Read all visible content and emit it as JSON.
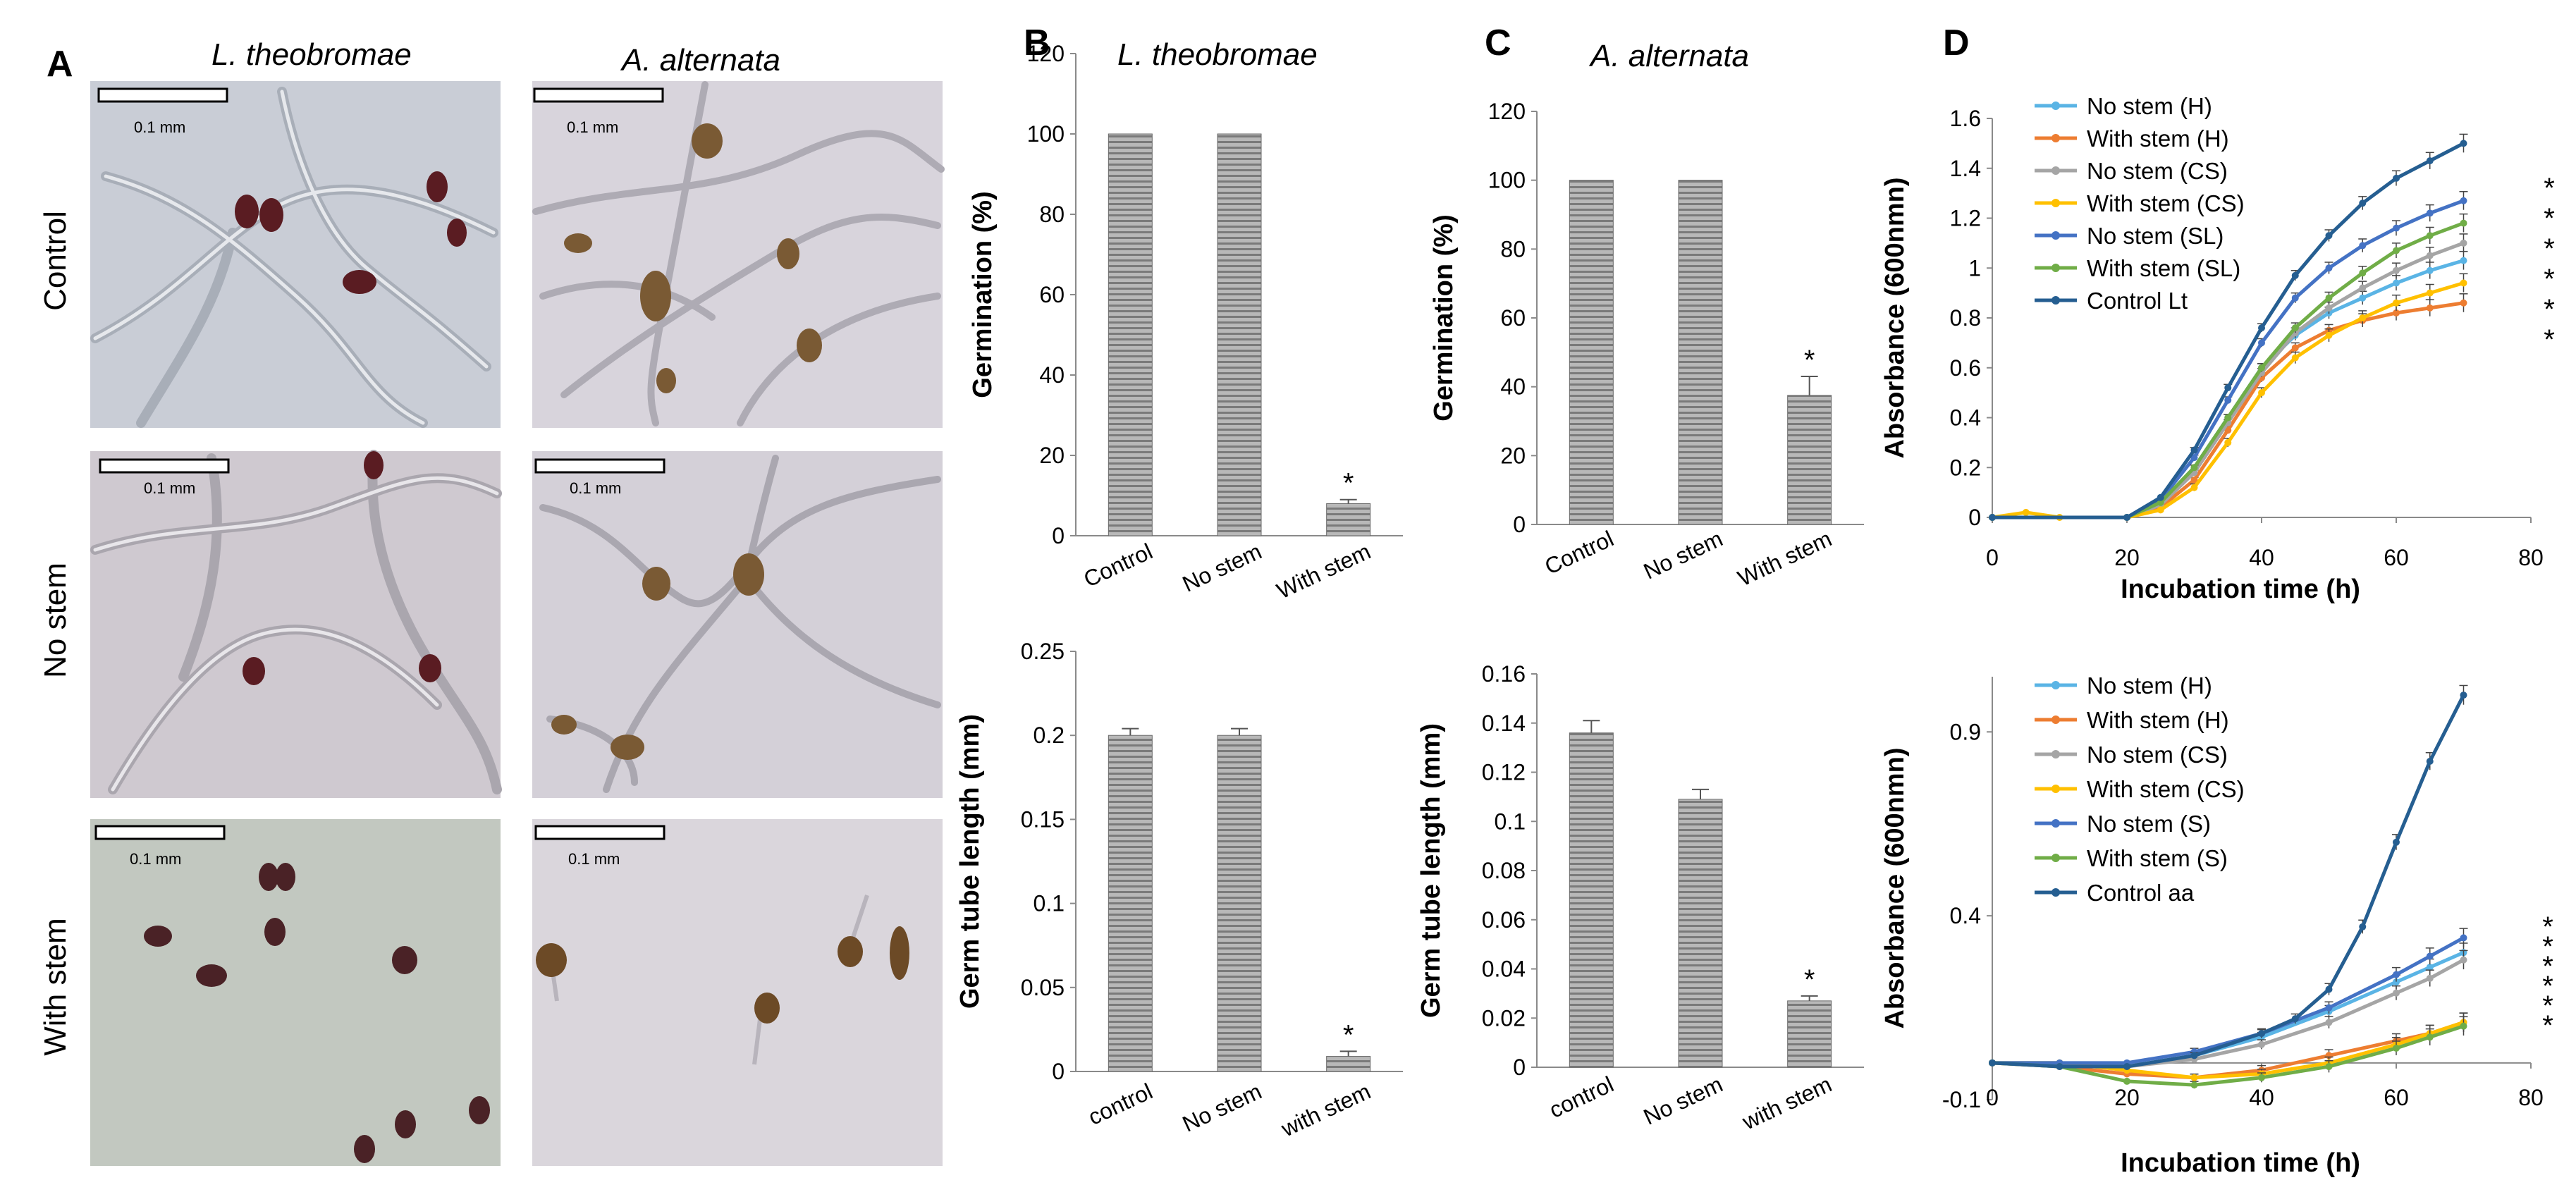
{
  "labels": {
    "A": "A",
    "B": "B",
    "C": "C",
    "D": "D"
  },
  "species": {
    "lt": "L. theobromae",
    "aa": "A. alternata"
  },
  "rows": [
    "Control",
    "No stem",
    "With stem"
  ],
  "scalebar": "0.1 mm",
  "colors": {
    "bar": "#8c8c8c",
    "error": "#555555",
    "axis": "#8a8a8a"
  },
  "chart_data": [
    {
      "id": "B1",
      "type": "bar",
      "title": "L. theobromae",
      "ylabel": "Germination (%)",
      "categories": [
        "Control",
        "No stem",
        "With stem"
      ],
      "values": [
        100,
        100,
        8
      ],
      "errors": [
        0,
        0,
        1
      ],
      "ylim": [
        0,
        120
      ],
      "yticks": [
        0,
        20,
        40,
        60,
        80,
        100,
        120
      ],
      "significance": [
        "",
        "",
        "*"
      ]
    },
    {
      "id": "B2",
      "type": "bar",
      "ylabel": "Germ tube length (mm)",
      "categories": [
        "control",
        "No stem",
        "with stem"
      ],
      "values": [
        0.2,
        0.2,
        0.009
      ],
      "errors": [
        0.004,
        0.004,
        0.003
      ],
      "ylim": [
        0,
        0.25
      ],
      "yticks": [
        "0",
        "0.05",
        "0.1",
        "0.15",
        "0.2",
        "0.25"
      ],
      "significance": [
        "",
        "",
        "*"
      ]
    },
    {
      "id": "C1",
      "type": "bar",
      "title": "A. alternata",
      "ylabel": "Germination (%)",
      "categories": [
        "Control",
        "No stem",
        "With stem"
      ],
      "values": [
        100,
        100,
        37.5
      ],
      "errors": [
        0,
        0,
        5.5
      ],
      "ylim": [
        0,
        120
      ],
      "yticks": [
        0,
        20,
        40,
        60,
        80,
        100,
        120
      ],
      "significance": [
        "",
        "",
        "*"
      ]
    },
    {
      "id": "C2",
      "type": "bar",
      "ylabel": "Germ tube length (mm)",
      "categories": [
        "control",
        "No stem",
        "with stem"
      ],
      "values": [
        0.136,
        0.109,
        0.027
      ],
      "errors": [
        0.005,
        0.004,
        0.002
      ],
      "ylim": [
        0,
        0.16
      ],
      "yticks": [
        "0",
        "0.02",
        "0.04",
        "0.06",
        "0.08",
        "0.1",
        "0.12",
        "0.14",
        "0.16"
      ],
      "significance": [
        "",
        "",
        "*"
      ]
    },
    {
      "id": "D1",
      "type": "line",
      "xlabel": "Incubation time (h)",
      "ylabel": "Absorbance (600nmn)",
      "xlim": [
        0,
        80
      ],
      "ylim": [
        0,
        1.6
      ],
      "xticks": [
        0,
        20,
        40,
        60,
        80
      ],
      "yticks": [
        "0",
        "0.2",
        "0.4",
        "0.6",
        "0.8",
        "1",
        "1.2",
        "1.4",
        "1.6"
      ],
      "significance": [
        "*",
        "*",
        "*",
        "*",
        "*",
        "*"
      ],
      "series": [
        {
          "name": "No stem (H)",
          "color": "#5ab4e5",
          "x": [
            0,
            20,
            25,
            30,
            35,
            40,
            45,
            50,
            55,
            60,
            65,
            70
          ],
          "y": [
            0,
            0,
            0.06,
            0.2,
            0.4,
            0.6,
            0.73,
            0.82,
            0.88,
            0.94,
            0.99,
            1.03
          ]
        },
        {
          "name": "With stem (H)",
          "color": "#ed7d31",
          "x": [
            0,
            20,
            25,
            30,
            35,
            40,
            45,
            50,
            55,
            60,
            65,
            70
          ],
          "y": [
            0,
            0,
            0.04,
            0.15,
            0.35,
            0.56,
            0.68,
            0.75,
            0.79,
            0.82,
            0.84,
            0.86
          ]
        },
        {
          "name": "No stem (CS)",
          "color": "#a5a5a5",
          "x": [
            0,
            20,
            25,
            30,
            35,
            40,
            45,
            50,
            55,
            60,
            65,
            70
          ],
          "y": [
            0,
            0,
            0.05,
            0.18,
            0.38,
            0.58,
            0.74,
            0.84,
            0.92,
            0.99,
            1.05,
            1.1
          ]
        },
        {
          "name": "With stem (CS)",
          "color": "#ffc000",
          "x": [
            0,
            5,
            10,
            20,
            25,
            30,
            35,
            40,
            45,
            50,
            55,
            60,
            65,
            70
          ],
          "y": [
            0,
            0.02,
            0,
            0,
            0.03,
            0.12,
            0.3,
            0.5,
            0.64,
            0.73,
            0.8,
            0.86,
            0.9,
            0.94
          ]
        },
        {
          "name": "No stem (SL)",
          "color": "#4472c4",
          "x": [
            0,
            20,
            25,
            30,
            35,
            40,
            45,
            50,
            55,
            60,
            65,
            70
          ],
          "y": [
            0,
            0,
            0.07,
            0.24,
            0.47,
            0.7,
            0.88,
            1.0,
            1.09,
            1.16,
            1.22,
            1.27
          ]
        },
        {
          "name": "With stem (SL)",
          "color": "#70ad47",
          "x": [
            0,
            20,
            25,
            30,
            35,
            40,
            45,
            50,
            55,
            60,
            65,
            70
          ],
          "y": [
            0,
            0,
            0.06,
            0.2,
            0.4,
            0.6,
            0.76,
            0.88,
            0.98,
            1.07,
            1.13,
            1.18
          ]
        },
        {
          "name": "Control Lt",
          "color": "#255e91",
          "x": [
            0,
            20,
            25,
            30,
            35,
            40,
            45,
            50,
            55,
            60,
            65,
            70
          ],
          "y": [
            0,
            0,
            0.08,
            0.27,
            0.52,
            0.76,
            0.97,
            1.13,
            1.26,
            1.36,
            1.43,
            1.5
          ]
        }
      ]
    },
    {
      "id": "D2",
      "type": "line",
      "xlabel": "Incubation time (h)",
      "ylabel": "Absorbance (600nmn)",
      "xlim": [
        0,
        80
      ],
      "ylim": [
        -0.1,
        1.05
      ],
      "xticks": [
        0,
        20,
        40,
        60,
        80
      ],
      "yticks": [
        "-0.1",
        "0.4",
        "0.9"
      ],
      "significance": [
        "*",
        "*",
        "*",
        "*",
        "*",
        "*"
      ],
      "series": [
        {
          "name": "No stem (H)",
          "color": "#5ab4e5",
          "x": [
            0,
            10,
            20,
            30,
            40,
            50,
            60,
            65,
            70
          ],
          "y": [
            0,
            0,
            -0.01,
            0.02,
            0.07,
            0.14,
            0.22,
            0.26,
            0.3
          ]
        },
        {
          "name": "With stem (H)",
          "color": "#ed7d31",
          "x": [
            0,
            10,
            20,
            30,
            40,
            50,
            60,
            65,
            70
          ],
          "y": [
            0,
            -0.01,
            -0.03,
            -0.04,
            -0.02,
            0.02,
            0.06,
            0.08,
            0.11
          ]
        },
        {
          "name": "No stem (CS)",
          "color": "#a5a5a5",
          "x": [
            0,
            10,
            20,
            30,
            40,
            50,
            60,
            65,
            70
          ],
          "y": [
            0,
            0,
            -0.01,
            0.01,
            0.05,
            0.11,
            0.19,
            0.23,
            0.28
          ]
        },
        {
          "name": "With stem (CS)",
          "color": "#ffc000",
          "x": [
            0,
            10,
            20,
            30,
            40,
            50,
            60,
            65,
            70
          ],
          "y": [
            0,
            0,
            -0.02,
            -0.04,
            -0.03,
            0,
            0.05,
            0.08,
            0.11
          ]
        },
        {
          "name": "No stem (S)",
          "color": "#4472c4",
          "x": [
            0,
            10,
            20,
            30,
            40,
            50,
            60,
            65,
            70
          ],
          "y": [
            0,
            0,
            0,
            0.03,
            0.08,
            0.15,
            0.24,
            0.29,
            0.34
          ]
        },
        {
          "name": "With stem (S)",
          "color": "#70ad47",
          "x": [
            0,
            10,
            20,
            30,
            40,
            50,
            60,
            65,
            70
          ],
          "y": [
            0,
            -0.01,
            -0.05,
            -0.06,
            -0.04,
            -0.01,
            0.04,
            0.07,
            0.1
          ]
        },
        {
          "name": "Control aa",
          "color": "#255e91",
          "x": [
            0,
            10,
            20,
            30,
            40,
            45,
            50,
            55,
            60,
            65,
            70
          ],
          "y": [
            0,
            -0.01,
            -0.01,
            0.02,
            0.08,
            0.12,
            0.2,
            0.37,
            0.6,
            0.82,
            1.0
          ]
        }
      ]
    }
  ]
}
